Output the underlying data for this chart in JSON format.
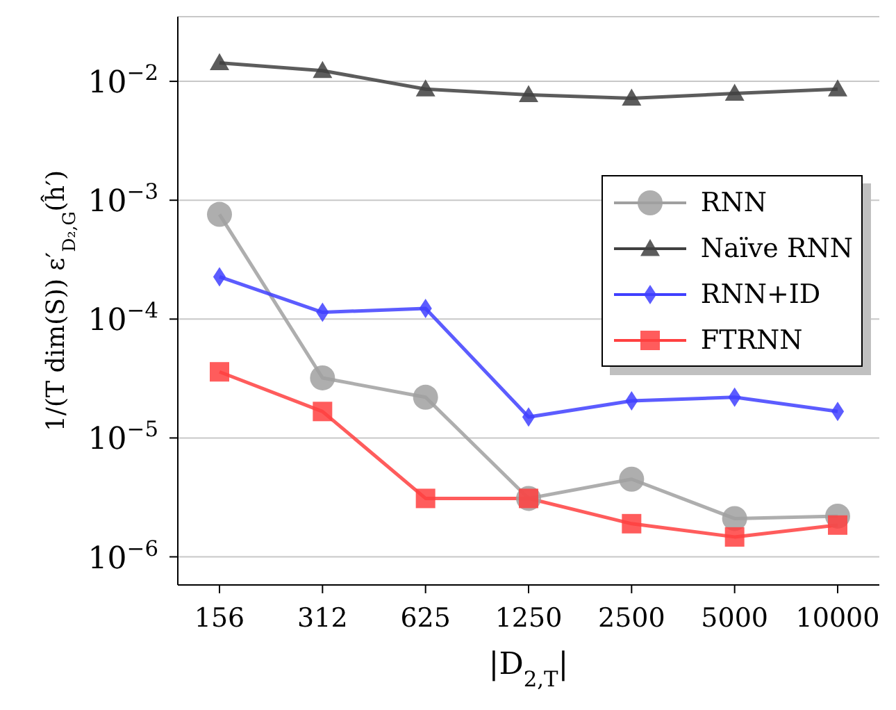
{
  "chart_data": {
    "type": "line",
    "xlabel": "|D$_{2,T}$|",
    "ylabel": "1/(T dim(S)) ε′$_{D₂,G}$(ĥ′)",
    "categories": [
      "156",
      "312",
      "625",
      "1250",
      "2500",
      "5000",
      "10000"
    ],
    "series": [
      {
        "name": "RNN",
        "color": "#a0a0a0",
        "marker": "circle",
        "values": [
          0.00076,
          3.2e-05,
          2.2e-05,
          3.1e-06,
          4.5e-06,
          2.1e-06,
          2.2e-06
        ]
      },
      {
        "name": "Naïve RNN",
        "color": "#404040",
        "marker": "triangle",
        "values": [
          0.0143,
          0.0123,
          0.0086,
          0.0077,
          0.0072,
          0.0079,
          0.0086
        ]
      },
      {
        "name": "RNN+ID",
        "color": "#4040ff",
        "marker": "diamond",
        "values": [
          0.000227,
          0.000114,
          0.000123,
          1.5e-05,
          2.05e-05,
          2.2e-05,
          1.67e-05
        ]
      },
      {
        "name": "FTRNN",
        "color": "#ff4040",
        "marker": "square",
        "values": [
          3.6e-05,
          1.67e-05,
          3.1e-06,
          3.1e-06,
          1.9e-06,
          1.47e-06,
          1.85e-06
        ]
      }
    ],
    "log": "y",
    "ylim": [
      5.8e-07,
      0.035
    ],
    "yticks": [
      {
        "value": 1e-06,
        "label": "10$^{−6}$"
      },
      {
        "value": 1e-05,
        "label": "10$^{−5}$"
      },
      {
        "value": 0.0001,
        "label": "10$^{−4}$"
      },
      {
        "value": 0.001,
        "label": "10$^{−3}$"
      },
      {
        "value": 0.01,
        "label": "10$^{−2}$"
      }
    ],
    "grid": "y",
    "legend": "right",
    "line_style": "solid"
  }
}
